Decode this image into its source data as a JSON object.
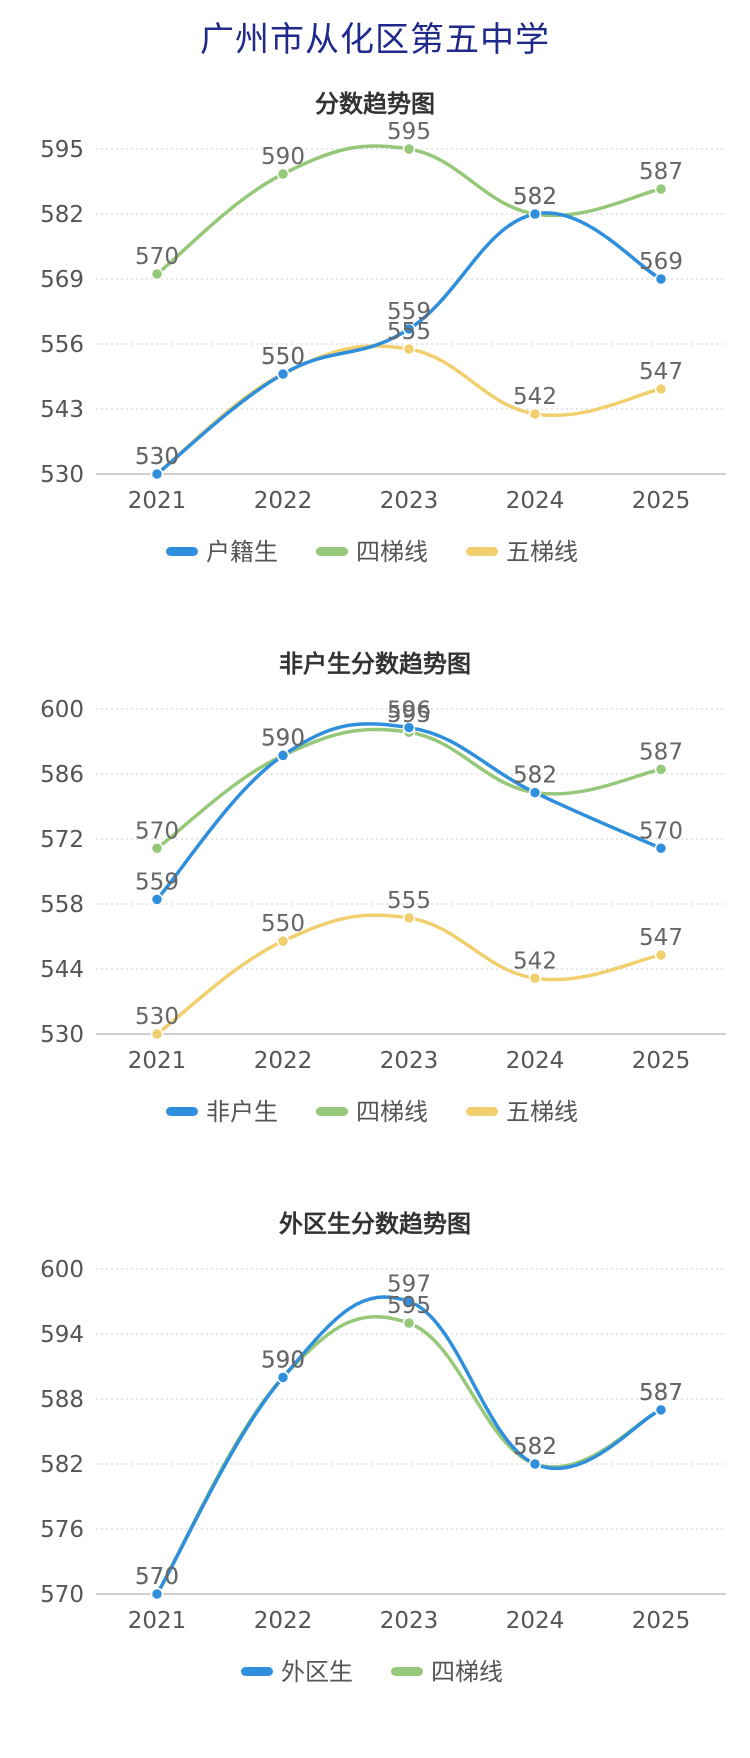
{
  "page": {
    "title": "广州市从化区第五中学"
  },
  "colors": {
    "blue": "#2f8fdc",
    "green": "#95c878",
    "yellow": "#f2cf6e"
  },
  "chart_data": [
    {
      "type": "line",
      "title": "分数趋势图",
      "categories": [
        "2021",
        "2022",
        "2023",
        "2024",
        "2025"
      ],
      "ylim": [
        530,
        595
      ],
      "yticks": [
        530,
        543,
        556,
        569,
        582,
        595
      ],
      "grid": true,
      "legend_position": "bottom",
      "series": [
        {
          "name": "户籍生",
          "color": "#2f8fdc",
          "values": [
            530,
            550,
            559,
            582,
            569
          ]
        },
        {
          "name": "四梯线",
          "color": "#95c878",
          "values": [
            570,
            590,
            595,
            582,
            587
          ]
        },
        {
          "name": "五梯线",
          "color": "#f2cf6e",
          "values": [
            530,
            550,
            555,
            542,
            547
          ]
        }
      ]
    },
    {
      "type": "line",
      "title": "非户生分数趋势图",
      "categories": [
        "2021",
        "2022",
        "2023",
        "2024",
        "2025"
      ],
      "ylim": [
        530,
        600
      ],
      "yticks": [
        530,
        544,
        558,
        572,
        586,
        600
      ],
      "grid": true,
      "legend_position": "bottom",
      "series": [
        {
          "name": "非户生",
          "color": "#2f8fdc",
          "values": [
            559,
            590,
            596,
            582,
            570
          ]
        },
        {
          "name": "四梯线",
          "color": "#95c878",
          "values": [
            570,
            590,
            595,
            582,
            587
          ]
        },
        {
          "name": "五梯线",
          "color": "#f2cf6e",
          "values": [
            530,
            550,
            555,
            542,
            547
          ]
        }
      ]
    },
    {
      "type": "line",
      "title": "外区生分数趋势图",
      "categories": [
        "2021",
        "2022",
        "2023",
        "2024",
        "2025"
      ],
      "ylim": [
        570,
        600
      ],
      "yticks": [
        570,
        576,
        582,
        588,
        594,
        600
      ],
      "grid": true,
      "legend_position": "bottom",
      "series": [
        {
          "name": "外区生",
          "color": "#2f8fdc",
          "values": [
            570,
            590,
            597,
            582,
            587
          ]
        },
        {
          "name": "四梯线",
          "color": "#95c878",
          "values": [
            570,
            590,
            595,
            582,
            587
          ]
        }
      ]
    }
  ]
}
